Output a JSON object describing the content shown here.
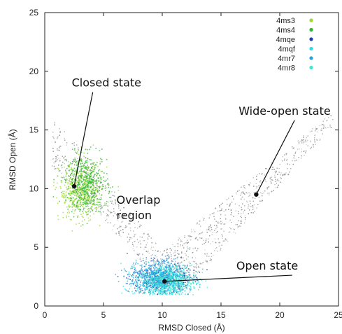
{
  "chart_data": {
    "type": "scatter",
    "title": "",
    "xlabel": "RMSD Closed (Å)",
    "ylabel": "RMSD Open (Å)",
    "xlim": [
      0,
      25
    ],
    "ylim": [
      0,
      25
    ],
    "xticks": [
      "0",
      "5",
      "10",
      "15",
      "20",
      "25"
    ],
    "yticks": [
      "0",
      "5",
      "10",
      "15",
      "20",
      "25"
    ],
    "grid": false,
    "legend_position": "top-right",
    "background_color": "#b0b0b0",
    "series": [
      {
        "name": "4ms3",
        "color": "#9bdb2c",
        "centroid": [
          3.0,
          9.8
        ]
      },
      {
        "name": "4ms4",
        "color": "#2fb52f",
        "centroid": [
          3.5,
          10.5
        ]
      },
      {
        "name": "4mqe",
        "color": "#1f3fb0",
        "centroid": [
          9.8,
          2.3
        ]
      },
      {
        "name": "4mqf",
        "color": "#22e0e8",
        "centroid": [
          10.0,
          2.0
        ]
      },
      {
        "name": "4mr7",
        "color": "#2aa0e0",
        "centroid": [
          9.5,
          2.6
        ]
      },
      {
        "name": "4mr8",
        "color": "#3ee8d0",
        "centroid": [
          10.5,
          2.2
        ]
      }
    ],
    "annotations": [
      {
        "text": "Closed state",
        "point": [
          2.5,
          10.2
        ],
        "label_anchor": [
          2.3,
          18.7
        ],
        "has_marker": true
      },
      {
        "text": "Wide-open state",
        "point": [
          18.0,
          9.5
        ],
        "label_anchor": [
          16.5,
          16.3
        ],
        "has_marker": true
      },
      {
        "text": "Overlap\nregion",
        "point": null,
        "label_anchor": [
          6.1,
          8.7
        ],
        "has_marker": false
      },
      {
        "text": "Open state",
        "point": [
          10.2,
          2.1
        ],
        "label_anchor": [
          16.3,
          3.1
        ],
        "has_marker": true
      }
    ]
  }
}
